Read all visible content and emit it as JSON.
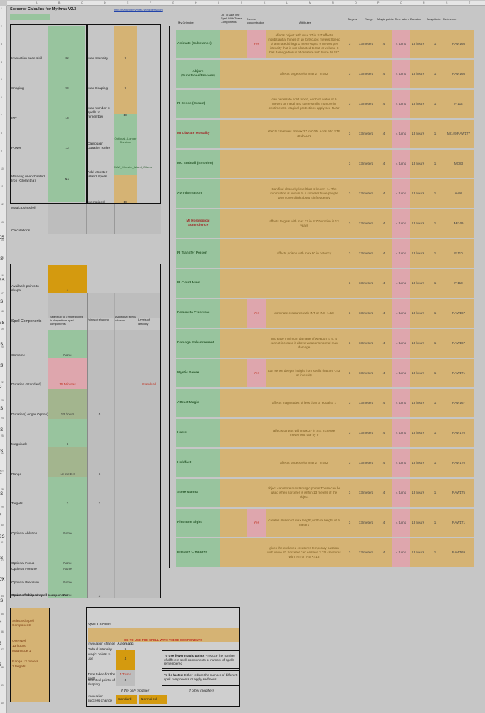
{
  "title": "Sorceror Calculus for Mythras V2.3",
  "link": "http://magicthemythras.wordpress.com",
  "left_labels": [
    {
      "label": "Invocation base skill",
      "value": "82"
    },
    {
      "label": "Shaping",
      "value": "90"
    },
    {
      "label": "INT",
      "value": "18"
    },
    {
      "label": "Power",
      "value": "13"
    },
    {
      "label": "Wearing unenchanted Iron (Glorantha)",
      "value": "No"
    },
    {
      "label": "Magic points left",
      "value": "13"
    }
  ],
  "mid_labels": [
    {
      "label": "Max Intensity",
      "value": "9"
    },
    {
      "label": "Max Shaping",
      "value": "9"
    },
    {
      "label": "Max number of spells to remember",
      "value": "18"
    },
    {
      "label": "Campaign Duration Rules",
      "value": "Optional - Longer Duration"
    },
    {
      "label": "Add Monster Island Spells",
      "value": "RAW_Monster_Island_Others"
    },
    {
      "label": "Memorized spells",
      "value": "18"
    }
  ],
  "calculations_label": "Calculations",
  "available_points_label": "Available points to shape",
  "available_points_value": "4",
  "spell_components_header": "Spell Components",
  "spell_components_cols": [
    "Select up to 2 more points in shape from spell components",
    "Points of shaping",
    "Additional spells chosen",
    "Levels of difficulty"
  ],
  "components": [
    {
      "label": "Combine",
      "value": "None",
      "pts": "",
      "diff": ""
    },
    {
      "label": "Duration (Standard)",
      "value": "15 Minutes",
      "pts": "",
      "diff": "Standard"
    },
    {
      "label": "Duration(Longer Option)",
      "value": "13 hours",
      "pts": "5",
      "diff": ""
    },
    {
      "label": "Magnitude",
      "value": "1",
      "pts": "",
      "diff": ""
    },
    {
      "label": "Range",
      "value": "13 meters",
      "pts": "1",
      "diff": ""
    },
    {
      "label": "Targets",
      "value": "3",
      "pts": "2",
      "diff": ""
    },
    {
      "label": "Optional Ablation",
      "value": "None",
      "pts": "",
      "diff": ""
    },
    {
      "label": "Optional Focus",
      "value": "None",
      "pts": "",
      "diff": ""
    },
    {
      "label": "Optional Fortune",
      "value": "None",
      "pts": "",
      "diff": ""
    },
    {
      "label": "Optional Precision",
      "value": "None",
      "pts": "",
      "diff": ""
    },
    {
      "label": "Optional Swiftness",
      "value": "None",
      "pts": "",
      "diff": ""
    }
  ],
  "count_label": "Count of shaped spell components",
  "count_value": "3",
  "selected_label": "Selected Spell Components",
  "selected_items": [
    "Overspell",
    "13 hours",
    "Magnitude 1",
    "Range 13 meters",
    "3 targets"
  ],
  "calculus": {
    "title": "Spell Calculus",
    "ok_text": "OK TO USE THE SPELL WITH THESE COMPONENTS",
    "rows": [
      {
        "label": "Invocation chance",
        "value": "Automatic"
      },
      {
        "label": "Default intensity",
        "value": "9"
      },
      {
        "label": "Magic points to use",
        "value": "4"
      },
      {
        "label": "Time taken for the spell",
        "value": "4 Turns"
      },
      {
        "label": "Selected points of shaping",
        "value": "3"
      }
    ],
    "tip1_bold": "To use fewer magic points",
    "tip1": " - reduce the number of different spell components or number of spells remembered",
    "tip2_bold": "To be faster:",
    "tip2": " Either reduce the number of different spell components or apply swiftness",
    "if_only": "If the only modifier",
    "if_other": "If other modifiers",
    "invocation_success": "Invocation success chance",
    "standard": "Standard",
    "normal_roll": "Normal roll"
  },
  "table_headers": {
    "name": "My Grimoire",
    "ok": "Ok To Use The Spell With These Components",
    "conc": "Needs concentration",
    "eff": "Attributes",
    "targets": "Targets",
    "range": "Range",
    "mp": "Magic points",
    "time": "Time taken",
    "dur": "Duration",
    "mag": "Magnitude",
    "ref": "Reference"
  },
  "spells": [
    {
      "name": "Animate (Substance)",
      "red": false,
      "conc": "Yes",
      "eff": "affects object with max 27 in SIZ Affects insubstantial things of up to 9 cubic meters Speed of animated things 1 meter+up to 9 meters per intensity that is not allocated to SIZ or volume It has damage/bonus of creature with twice its SIZ",
      "targets": "3",
      "range": "13 meters",
      "mp": "4",
      "time": "4 turns",
      "dur": "13 hours",
      "mag": "1",
      "ref": "RAW166"
    },
    {
      "name": "Abjure (Substance/Process)",
      "red": false,
      "conc": "",
      "eff": "affects targets with max 27 in SIZ",
      "targets": "3",
      "range": "13 meters",
      "mp": "4",
      "time": "4 turns",
      "dur": "13 hours",
      "mag": "1",
      "ref": "RAW166"
    },
    {
      "name": "FI Sense (Dream)",
      "red": false,
      "conc": "",
      "eff": "can penetrate solid wood, earth or water of 9 meters or metal and stone similar number in centimeters. Magical protections apply see RAW",
      "targets": "3",
      "range": "13 meters",
      "mp": "4",
      "time": "4 turns",
      "dur": "13 hours",
      "mag": "1",
      "ref": "FI114"
    },
    {
      "name": "MI Obviate Mortality",
      "red": true,
      "conc": "",
      "eff": "affects creatures of max 27 in CON Adds 9 to STR and CON",
      "targets": "3",
      "range": "13 meters",
      "mp": "4",
      "time": "4 turns",
      "dur": "13 hours",
      "mag": "1",
      "ref": "MI149 RAW177"
    },
    {
      "name": "MC Embrail (Emotion)",
      "red": false,
      "conc": "",
      "eff": "",
      "targets": "3",
      "range": "13 meters",
      "mp": "4",
      "time": "4 turns",
      "dur": "13 hours",
      "mag": "1",
      "ref": "MC83"
    },
    {
      "name": "AV Information",
      "red": false,
      "conc": "",
      "eff": "Can find obscurity level that is known <= The information is known to a sorcerer have people who cover think about it infrequently",
      "targets": "3",
      "range": "13 meters",
      "mp": "4",
      "time": "4 turns",
      "dur": "13 hours",
      "mag": "1",
      "ref": "AV91"
    },
    {
      "name": "MI Horological Somnolence",
      "red": true,
      "conc": "",
      "eff": "affects targets with max 27 in SIZ Duration is 13 years",
      "targets": "3",
      "range": "13 meters",
      "mp": "4",
      "time": "4 turns",
      "dur": "13 hours",
      "mag": "1",
      "ref": "MI149"
    },
    {
      "name": "FI Transfer Poison",
      "red": false,
      "conc": "",
      "eff": "affects poison with max 90 in potency",
      "targets": "3",
      "range": "13 meters",
      "mp": "4",
      "time": "4 turns",
      "dur": "13 hours",
      "mag": "1",
      "ref": "FI110"
    },
    {
      "name": "FI Cloud Mind",
      "red": false,
      "conc": "",
      "eff": "",
      "targets": "3",
      "range": "13 meters",
      "mp": "4",
      "time": "4 turns",
      "dur": "13 hours",
      "mag": "1",
      "ref": "FI113"
    },
    {
      "name": "Dominate Creatures",
      "red": false,
      "conc": "Yes",
      "eff": "dominate creatures with INT or INS <=18",
      "targets": "3",
      "range": "13 meters",
      "mp": "4",
      "time": "4 turns",
      "dur": "13 hours",
      "mag": "1",
      "ref": "RAW167"
    },
    {
      "name": "Damage Enhancement",
      "red": false,
      "conc": "",
      "eff": "Increase minimum damage of weapon to 9. It cannot increase it above weapons normal max damage",
      "targets": "3",
      "range": "13 meters",
      "mp": "4",
      "time": "4 turns",
      "dur": "13 hours",
      "mag": "1",
      "ref": "RAW167"
    },
    {
      "name": "Mystic Sense",
      "red": false,
      "conc": "Yes",
      "eff": "can sense deeper insight from spells that are <=3 or intensity",
      "targets": "3",
      "range": "13 meters",
      "mp": "4",
      "time": "4 turns",
      "dur": "13 hours",
      "mag": "1",
      "ref": "RAW171"
    },
    {
      "name": "Attract Magic",
      "red": false,
      "conc": "",
      "eff": "affects magnitudes of less than or equal to 1",
      "targets": "3",
      "range": "13 meters",
      "mp": "4",
      "time": "4 turns",
      "dur": "13 hours",
      "mag": "1",
      "ref": "RAW167"
    },
    {
      "name": "Haste",
      "red": false,
      "conc": "",
      "eff": "affects targets with max 27 in SIZ Increase movement rate by 9",
      "targets": "3",
      "range": "13 meters",
      "mp": "4",
      "time": "4 turns",
      "dur": "13 hours",
      "mag": "1",
      "ref": "RAW170"
    },
    {
      "name": "Holdfast",
      "red": false,
      "conc": "",
      "eff": "affects targets with max 27 in SIZ",
      "targets": "3",
      "range": "13 meters",
      "mp": "4",
      "time": "4 turns",
      "dur": "13 hours",
      "mag": "1",
      "ref": "RAW170"
    },
    {
      "name": "Store Manna",
      "red": false,
      "conc": "",
      "eff": "object can store max 9 magic points Those can be used when sorcerer is within 13 meters of the object",
      "targets": "3",
      "range": "13 meters",
      "mp": "4",
      "time": "4 turns",
      "dur": "13 hours",
      "mag": "1",
      "ref": "RAW175"
    },
    {
      "name": "Phantom Sight",
      "red": false,
      "conc": "Yes",
      "eff": "creates illusion of max length,width or height of 9 meters",
      "targets": "3",
      "range": "13 meters",
      "mp": "4",
      "time": "4 turns",
      "dur": "13 hours",
      "mag": "1",
      "ref": "RAW171"
    },
    {
      "name": "Enslave Creatures",
      "red": false,
      "conc": "",
      "eff": "gives the enslaved creatures temporary passion with value 83 Sorcerer can enslave 3 TO creatures with INT or INS <=18",
      "targets": "3",
      "range": "13 meters",
      "mp": "4",
      "time": "4 turns",
      "dur": "13 hours",
      "mag": "1",
      "ref": "RAW169"
    }
  ],
  "col_letters": [
    "A",
    "B",
    "C",
    "D",
    "E",
    "F",
    "G",
    "H",
    "I",
    "J",
    "K",
    "L",
    "M",
    "N",
    "O",
    "P",
    "Q",
    "R",
    "S",
    "T"
  ],
  "left_edge_glyphs": [
    "cs",
    "ts",
    "es",
    "ts",
    "es",
    "ts",
    "ts",
    "o",
    "ts",
    "ts",
    "ts",
    "a",
    "ts",
    "a",
    "es",
    "ts",
    "ox",
    "ts",
    "e",
    "s",
    "s"
  ]
}
